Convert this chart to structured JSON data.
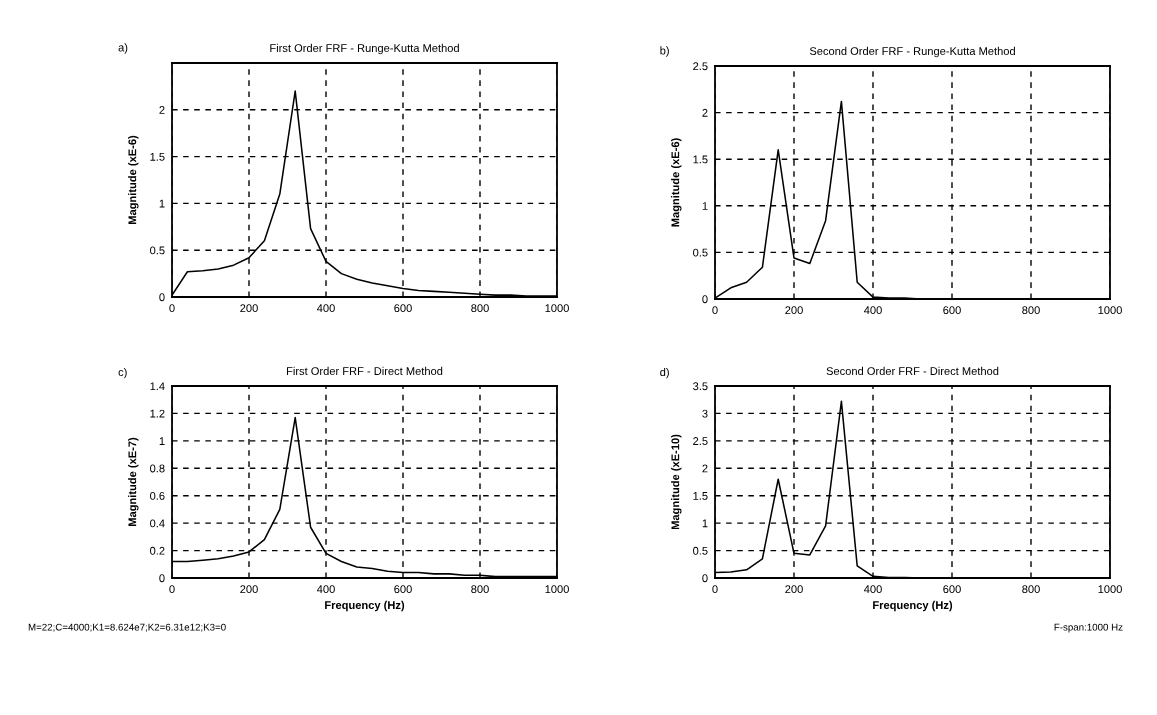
{
  "chart_data": [
    {
      "type": "line",
      "title": "First Order FRF - Runge-Kutta Method",
      "ylabel": "Magnitude (xE-6)",
      "annotations": [
        "a)"
      ],
      "grid": true,
      "x": [
        0,
        40,
        80,
        120,
        160,
        200,
        240,
        280,
        320,
        360,
        400,
        440,
        480,
        520,
        560,
        600,
        640,
        680,
        720,
        760,
        800,
        840,
        880,
        920,
        960,
        1000
      ],
      "series": [
        {
          "color": "#000000",
          "values": [
            0.02,
            0.27,
            0.28,
            0.3,
            0.34,
            0.42,
            0.6,
            1.1,
            2.2,
            0.73,
            0.38,
            0.25,
            0.19,
            0.15,
            0.12,
            0.09,
            0.07,
            0.06,
            0.05,
            0.04,
            0.03,
            0.02,
            0.02,
            0.01,
            0.01,
            0.01
          ]
        }
      ],
      "xlim": [
        0,
        1000
      ],
      "xticks": [
        0,
        200,
        400,
        600,
        800,
        1000
      ],
      "ylim": [
        0,
        2.5
      ],
      "yticks": [
        0,
        0.5,
        1,
        1.5,
        2
      ]
    },
    {
      "type": "line",
      "title": "Second Order FRF - Runge-Kutta Method",
      "ylabel": "Magnitude (xE-6)",
      "annotations": [
        "b)"
      ],
      "grid": true,
      "x": [
        0,
        40,
        80,
        120,
        160,
        200,
        240,
        280,
        320,
        360,
        400,
        440,
        480,
        520,
        560,
        600,
        640,
        680,
        720,
        760,
        800,
        840,
        880,
        920,
        960,
        1000
      ],
      "series": [
        {
          "color": "#000000",
          "values": [
            0.01,
            0.12,
            0.18,
            0.34,
            1.6,
            0.44,
            0.38,
            0.84,
            2.12,
            0.18,
            0.02,
            0.01,
            0.01,
            0,
            0,
            0,
            0,
            0,
            0,
            0,
            0,
            0,
            0,
            0,
            0,
            0
          ]
        }
      ],
      "xlim": [
        0,
        1000
      ],
      "xticks": [
        0,
        200,
        400,
        600,
        800,
        1000
      ],
      "ylim": [
        0,
        2.5
      ],
      "yticks": [
        0,
        0.5,
        1,
        1.5,
        2,
        2.5
      ]
    },
    {
      "type": "line",
      "title": "First Order FRF - Direct Method",
      "xlabel": "Frequency (Hz)",
      "ylabel": "Magnitude (xE-7)",
      "annotations": [
        "c)",
        "M=22;C=4000;K1=8.624e7;K2=6.31e12;K3=0"
      ],
      "grid": true,
      "x": [
        0,
        40,
        80,
        120,
        160,
        200,
        240,
        280,
        320,
        360,
        400,
        440,
        480,
        520,
        560,
        600,
        640,
        680,
        720,
        760,
        800,
        840,
        880,
        920,
        960,
        1000
      ],
      "series": [
        {
          "color": "#000000",
          "values": [
            0.12,
            0.12,
            0.13,
            0.14,
            0.16,
            0.19,
            0.28,
            0.5,
            1.17,
            0.37,
            0.18,
            0.12,
            0.08,
            0.07,
            0.05,
            0.04,
            0.04,
            0.03,
            0.03,
            0.02,
            0.02,
            0.01,
            0.01,
            0.01,
            0.01,
            0.01
          ]
        }
      ],
      "xlim": [
        0,
        1000
      ],
      "xticks": [
        0,
        200,
        400,
        600,
        800,
        1000
      ],
      "ylim": [
        0,
        1.4
      ],
      "yticks": [
        0,
        0.2,
        0.4,
        0.6,
        0.8,
        1,
        1.2,
        1.4
      ]
    },
    {
      "type": "line",
      "title": "Second Order FRF - Direct Method",
      "xlabel": "Frequency (Hz)",
      "ylabel": "Magnitude (xE-10)",
      "annotations": [
        "d)",
        "F-span:1000 Hz"
      ],
      "grid": true,
      "x": [
        0,
        40,
        80,
        120,
        160,
        200,
        240,
        280,
        320,
        360,
        400,
        440,
        480,
        520,
        560,
        600,
        640,
        680,
        720,
        760,
        800,
        840,
        880,
        920,
        960,
        1000
      ],
      "series": [
        {
          "color": "#000000",
          "values": [
            0.1,
            0.11,
            0.15,
            0.35,
            1.8,
            0.45,
            0.42,
            0.95,
            3.22,
            0.22,
            0.03,
            0.01,
            0.01,
            0,
            0,
            0,
            0,
            0,
            0,
            0,
            0,
            0,
            0,
            0,
            0,
            0
          ]
        }
      ],
      "xlim": [
        0,
        1000
      ],
      "xticks": [
        0,
        200,
        400,
        600,
        800,
        1000
      ],
      "ylim": [
        0,
        3.5
      ],
      "yticks": [
        0,
        0.5,
        1,
        1.5,
        2,
        2.5,
        3,
        3.5
      ]
    }
  ]
}
